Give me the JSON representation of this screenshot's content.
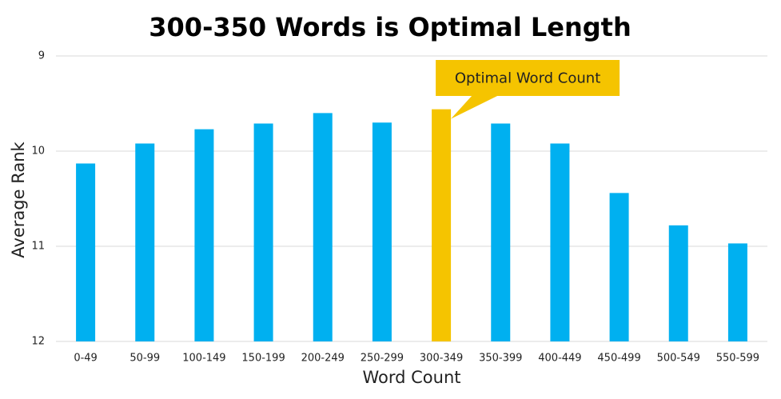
{
  "chart_data": {
    "type": "bar",
    "title": "300-350 Words is Optimal Length",
    "x_label": "Word Count",
    "y_label": "Average Rank",
    "categories": [
      "0-49",
      "50-99",
      "100-149",
      "150-199",
      "200-249",
      "250-299",
      "300-349",
      "350-399",
      "400-449",
      "450-499",
      "500-549",
      "550-599"
    ],
    "values": [
      10.13,
      9.92,
      9.77,
      9.71,
      9.6,
      9.7,
      9.56,
      9.71,
      9.92,
      10.44,
      10.78,
      10.97
    ],
    "colors": [
      "#00b0f0",
      "#00b0f0",
      "#00b0f0",
      "#00b0f0",
      "#00b0f0",
      "#00b0f0",
      "#f5c400",
      "#00b0f0",
      "#00b0f0",
      "#00b0f0",
      "#00b0f0",
      "#00b0f0"
    ],
    "ylim": [
      12,
      9
    ],
    "yticks": [
      12,
      11,
      10,
      9
    ],
    "grid": true,
    "annotation": {
      "text": "Optimal Word Count",
      "color": "#f5c400"
    }
  }
}
